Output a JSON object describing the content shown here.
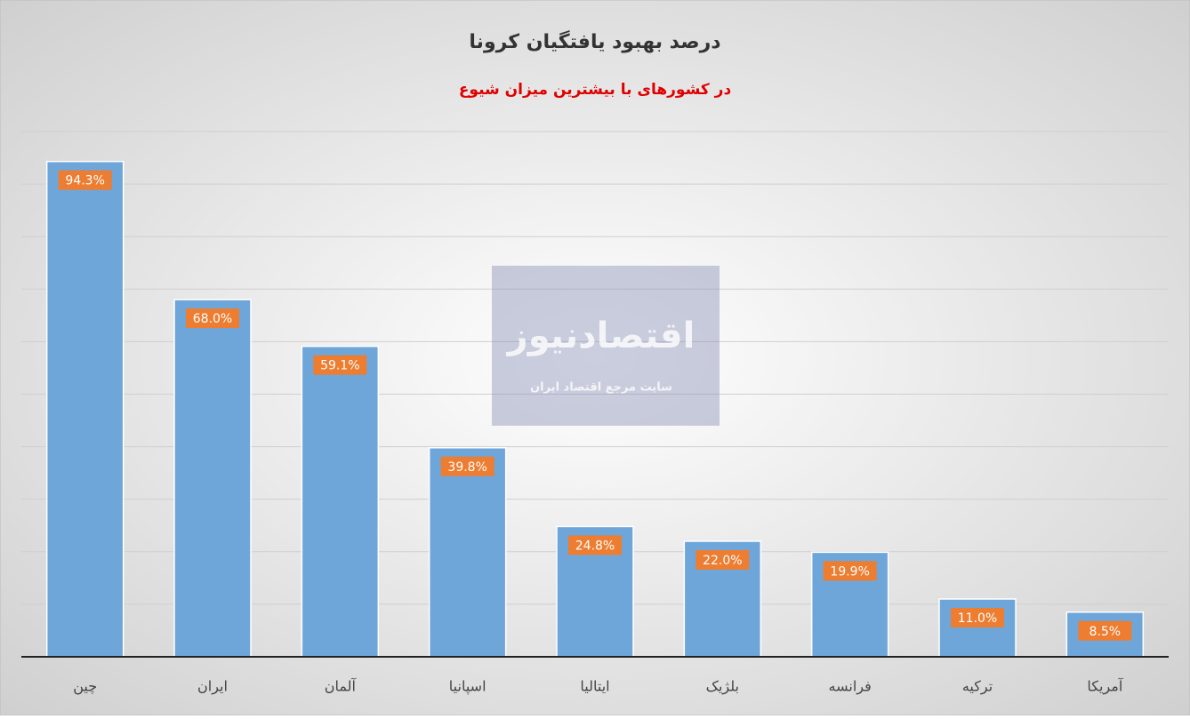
{
  "chart_data": {
    "type": "bar",
    "title": "درصد بهبود یافتگیان کرونا",
    "subtitle": "در کشورهای با بیشترین میزان شیوع",
    "categories": [
      "چین",
      "ایران",
      "آلمان",
      "اسپانیا",
      "ایتالیا",
      "بلژیک",
      "فرانسه",
      "ترکیه",
      "آمریکا"
    ],
    "values": [
      94.3,
      68.0,
      59.1,
      39.8,
      24.8,
      22.0,
      19.9,
      11.0,
      8.5
    ],
    "value_labels": [
      "94.3%",
      "68.0%",
      "59.1%",
      "39.8%",
      "24.8%",
      "22.0%",
      "19.9%",
      "11.0%",
      "8.5%"
    ],
    "color": "#6fa6da",
    "label_color": "#ed7d31",
    "ylim": [
      0,
      100
    ],
    "yticks": [
      0,
      10,
      20,
      30,
      40,
      50,
      60,
      70,
      80,
      90,
      100
    ],
    "grid": true
  },
  "watermark": {
    "title": "اقتصادنیوز",
    "subtitle": "سایت مرجع اقتصاد ایران"
  }
}
